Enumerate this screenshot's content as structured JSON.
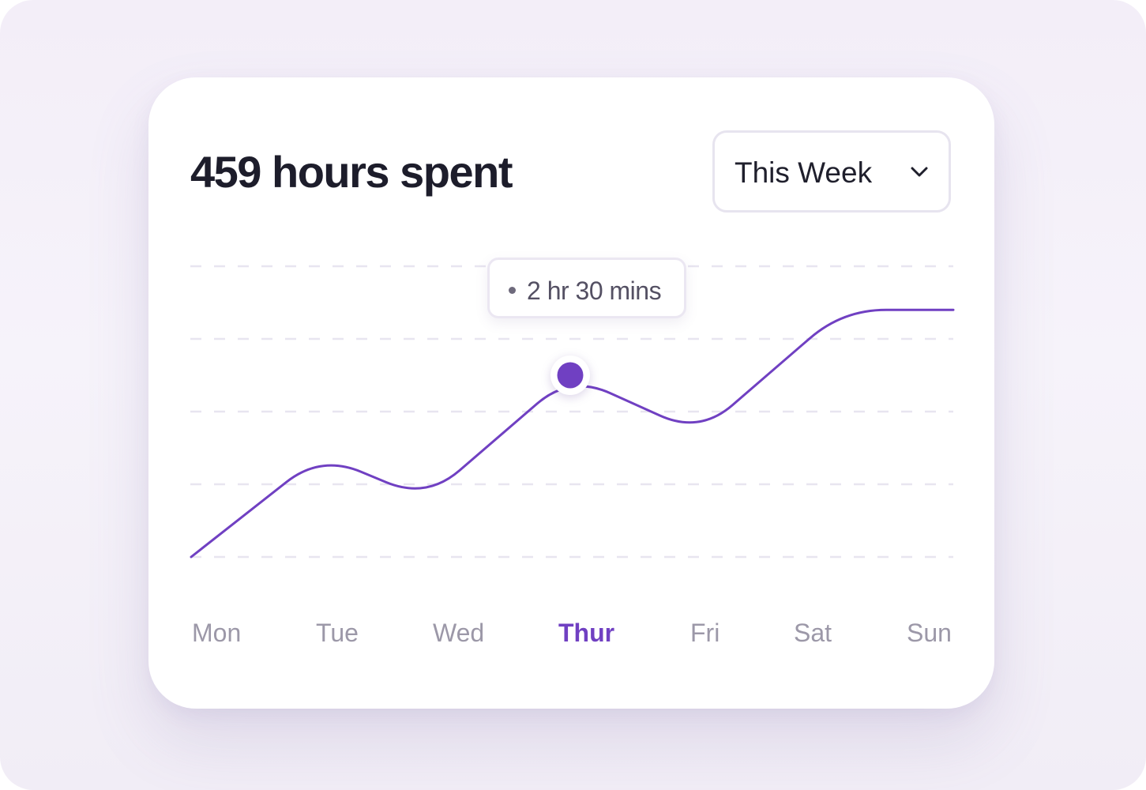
{
  "card": {
    "title": "459 hours spent"
  },
  "period_select": {
    "selected": "This Week",
    "icon": "chevron-down-icon"
  },
  "tooltip": {
    "text": "2 hr 30 mins"
  },
  "colors": {
    "accent": "#7040c2",
    "grid": "#e8e5f0",
    "title": "#1d1d2b",
    "axis_label": "#9c98a8"
  },
  "chart_data": {
    "type": "line",
    "categories": [
      "Mon",
      "Tue",
      "Wed",
      "Thur",
      "Fri",
      "Sat",
      "Sun"
    ],
    "values": [
      0,
      1.4,
      0.8,
      2.5,
      1.7,
      3.4,
      3.4
    ],
    "highlighted_category": "Thur",
    "ylim": [
      0,
      4
    ],
    "grid": "horizontal-dashed",
    "legend": "none",
    "smooth": true
  }
}
